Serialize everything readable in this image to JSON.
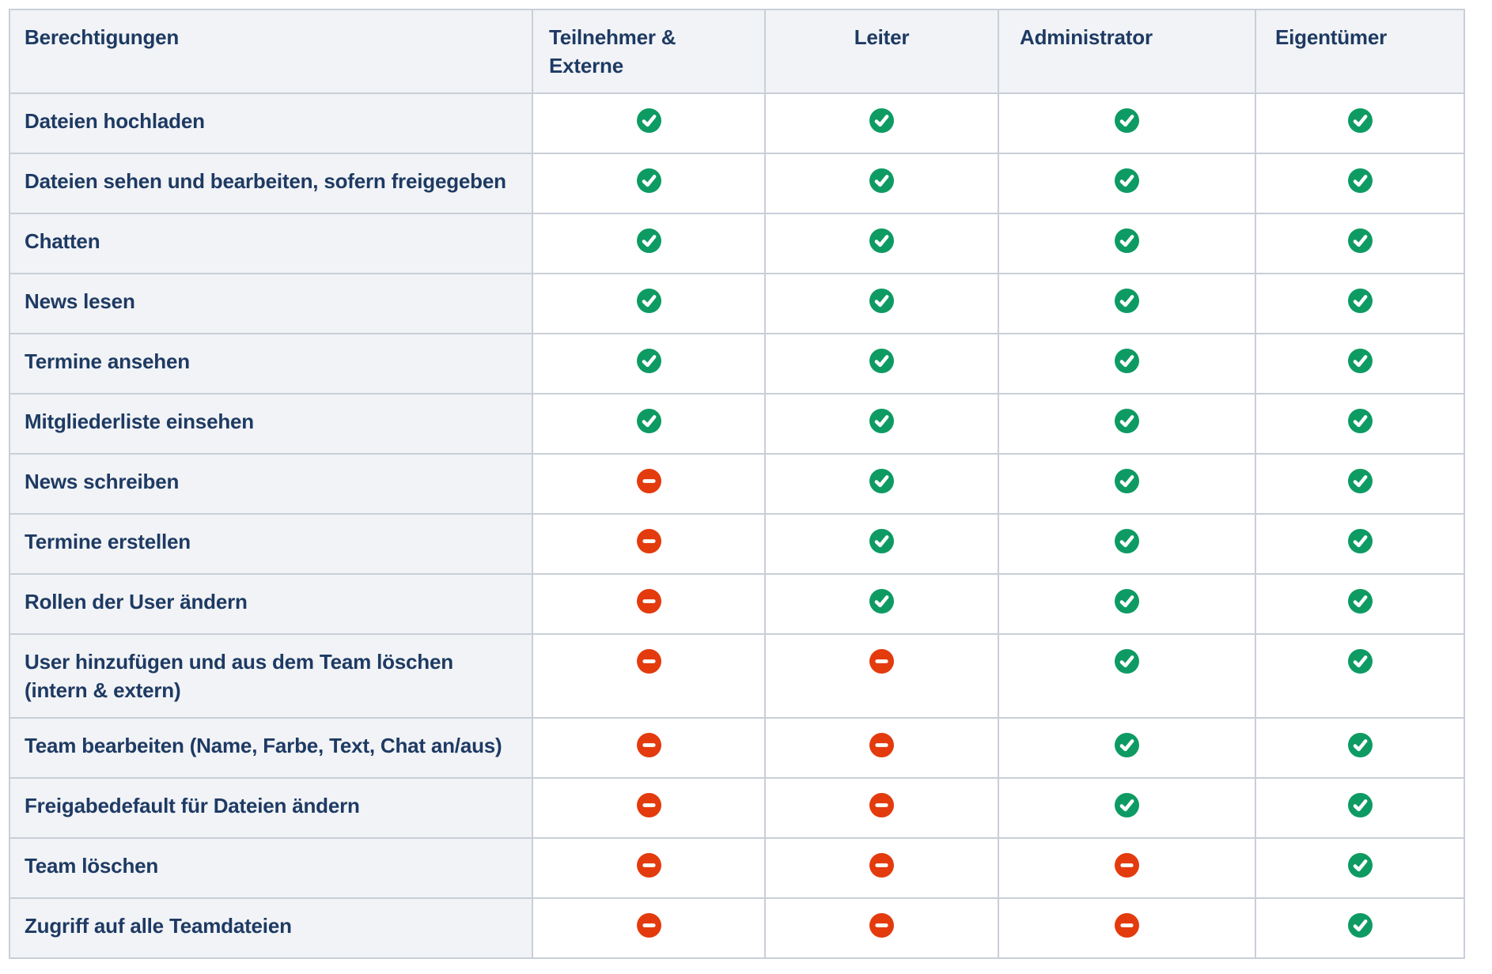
{
  "colors": {
    "allowed_green": "#0e9b63",
    "denied_red": "#e33b0d",
    "text_navy": "#1e3a63",
    "shaded_cell_bg": "#f1f3f6",
    "border_gray": "#c9cfd8",
    "data_cell_bg": "#ffffff"
  },
  "icons": {
    "allowed": "check-circle-icon",
    "denied": "minus-circle-icon"
  },
  "table": {
    "columns": [
      {
        "id": "berechtigungen",
        "label": "Berechtigungen"
      },
      {
        "id": "teilnehmer-externe",
        "label": "Teilnehmer & Externe"
      },
      {
        "id": "leiter",
        "label": "Leiter"
      },
      {
        "id": "administrator",
        "label": "Administrator"
      },
      {
        "id": "eigentuemer",
        "label": "Eigentümer"
      }
    ],
    "rows": [
      {
        "label": "Dateien hochladen",
        "values": [
          true,
          true,
          true,
          true
        ]
      },
      {
        "label": "Dateien sehen und bearbeiten, sofern freigegeben",
        "values": [
          true,
          true,
          true,
          true
        ]
      },
      {
        "label": "Chatten",
        "values": [
          true,
          true,
          true,
          true
        ]
      },
      {
        "label": "News lesen",
        "values": [
          true,
          true,
          true,
          true
        ]
      },
      {
        "label": "Termine ansehen",
        "values": [
          true,
          true,
          true,
          true
        ]
      },
      {
        "label": "Mitgliederliste einsehen",
        "values": [
          true,
          true,
          true,
          true
        ]
      },
      {
        "label": "News schreiben",
        "values": [
          false,
          true,
          true,
          true
        ]
      },
      {
        "label": "Termine erstellen",
        "values": [
          false,
          true,
          true,
          true
        ]
      },
      {
        "label": "Rollen der User ändern",
        "values": [
          false,
          true,
          true,
          true
        ]
      },
      {
        "label": "User hinzufügen und aus dem Team löschen (intern & extern)",
        "values": [
          false,
          false,
          true,
          true
        ]
      },
      {
        "label": "Team bearbeiten (Name, Farbe, Text, Chat an/aus)",
        "values": [
          false,
          false,
          true,
          true
        ]
      },
      {
        "label": "Freigabedefault für Dateien ändern",
        "values": [
          false,
          false,
          true,
          true
        ]
      },
      {
        "label": "Team löschen",
        "values": [
          false,
          false,
          false,
          true
        ]
      },
      {
        "label": "Zugriff auf alle Teamdateien",
        "values": [
          false,
          false,
          false,
          true
        ]
      }
    ]
  }
}
